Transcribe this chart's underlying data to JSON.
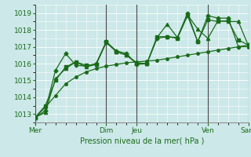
{
  "xlabel": "Pression niveau de la mer( hPa )",
  "ylim": [
    1012.5,
    1019.5
  ],
  "xlim": [
    0,
    21
  ],
  "yticks": [
    1013,
    1014,
    1015,
    1016,
    1017,
    1018,
    1019
  ],
  "xtick_positions": [
    0,
    7,
    10,
    17,
    21
  ],
  "xtick_labels": [
    "Mer",
    "Dim",
    "Jeu",
    "Ven",
    "Sam"
  ],
  "bg_color": "#cce8e8",
  "grid_color": "#ffffff",
  "line_color": "#1a6b1a",
  "series_smooth": [
    1012.8,
    1013.4,
    1014.1,
    1014.8,
    1015.2,
    1015.5,
    1015.7,
    1015.85,
    1015.95,
    1016.05,
    1016.1,
    1016.15,
    1016.2,
    1016.3,
    1016.4,
    1016.5,
    1016.6,
    1016.7,
    1016.8,
    1016.9,
    1017.0,
    1017.0
  ],
  "series2": [
    1012.8,
    1013.5,
    1015.0,
    1015.8,
    1016.1,
    1015.9,
    1015.95,
    1017.3,
    1016.7,
    1016.5,
    1016.0,
    1016.0,
    1017.6,
    1017.6,
    1017.5,
    1018.85,
    1017.3,
    1018.6,
    1018.5,
    1018.55,
    1017.4,
    1017.1
  ],
  "series3": [
    1012.8,
    1013.1,
    1015.1,
    1015.7,
    1016.1,
    1015.8,
    1015.95,
    1017.25,
    1016.7,
    1016.5,
    1016.05,
    1016.0,
    1017.55,
    1018.35,
    1017.55,
    1018.9,
    1018.05,
    1017.5,
    1018.55,
    1018.5,
    1018.5,
    1017.05
  ],
  "series4": [
    1012.8,
    1013.2,
    1015.6,
    1016.6,
    1015.9,
    1015.85,
    1016.0,
    1017.3,
    1016.75,
    1016.6,
    1015.95,
    1016.0,
    1017.5,
    1017.6,
    1017.55,
    1019.0,
    1017.3,
    1018.85,
    1018.7,
    1018.7,
    1017.0,
    1017.1
  ]
}
